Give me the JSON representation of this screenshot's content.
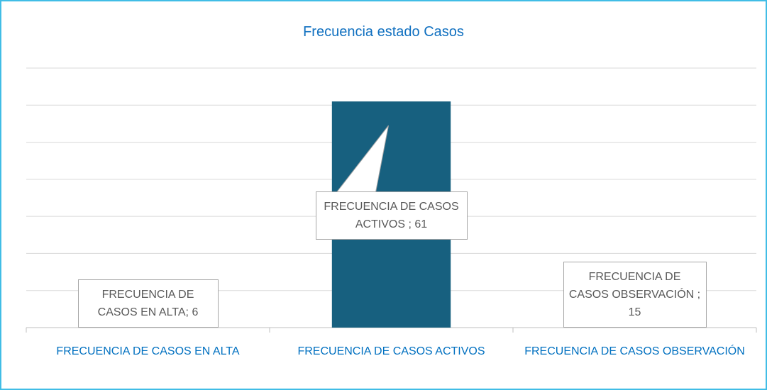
{
  "chart_data": {
    "type": "bar",
    "title": "Frecuencia estado Casos",
    "categories": [
      "FRECUENCIA DE CASOS EN ALTA",
      "FRECUENCIA DE CASOS ACTIVOS",
      "FRECUENCIA DE CASOS OBSERVACIÓN"
    ],
    "values": [
      6,
      61,
      15
    ],
    "value_labels": [
      "FRECUENCIA DE CASOS EN ALTA; 6",
      "FRECUENCIA DE CASOS ACTIVOS ; 61",
      "FRECUENCIA DE CASOS OBSERVACIÓN ; 15"
    ],
    "color": "#17607f",
    "ylim": [
      0,
      70
    ],
    "yticks": [
      0,
      10,
      20,
      30,
      40,
      50,
      60,
      70
    ],
    "grid": true
  }
}
